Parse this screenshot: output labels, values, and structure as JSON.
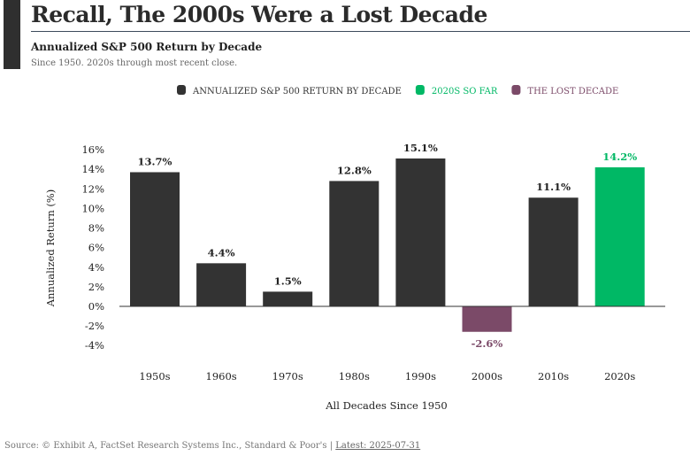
{
  "header": {
    "title": "Recall, The 2000s Were a Lost Decade",
    "subtitle": "Annualized S&P 500 Return by Decade",
    "note": "Since 1950. 2020s through most recent close."
  },
  "footer": {
    "source": "Source: © Exhibit A, FactSet Research Systems Inc., Standard & Poor's | ",
    "latest": "Latest: 2025-07-31"
  },
  "colors": {
    "default": "#333333",
    "current": "#00b865",
    "lost": "#7b4a68"
  },
  "chart_data": {
    "type": "bar",
    "categories": [
      "1950s",
      "1960s",
      "1970s",
      "1980s",
      "1990s",
      "2000s",
      "2010s",
      "2020s"
    ],
    "values": [
      13.7,
      4.4,
      1.5,
      12.8,
      15.1,
      -2.6,
      11.1,
      14.2
    ],
    "data_labels": [
      "13.7%",
      "4.4%",
      "1.5%",
      "12.8%",
      "15.1%",
      "-2.6%",
      "11.1%",
      "14.2%"
    ],
    "groups": [
      "default",
      "default",
      "default",
      "default",
      "default",
      "lost",
      "default",
      "current"
    ],
    "legend": [
      {
        "name": "ANNUALIZED S&P 500 RETURN BY DECADE",
        "group": "default"
      },
      {
        "name": "2020S SO FAR",
        "group": "current"
      },
      {
        "name": "THE LOST DECADE",
        "group": "lost"
      }
    ],
    "legend_position": "top",
    "xlabel": "All Decades Since 1950",
    "ylabel": "Annualized Return (%)",
    "ylim": [
      -4,
      16
    ],
    "yticks": [
      "-4%",
      "-2%",
      "0%",
      "2%",
      "4%",
      "6%",
      "8%",
      "10%",
      "12%",
      "14%",
      "16%"
    ],
    "grid": false
  }
}
